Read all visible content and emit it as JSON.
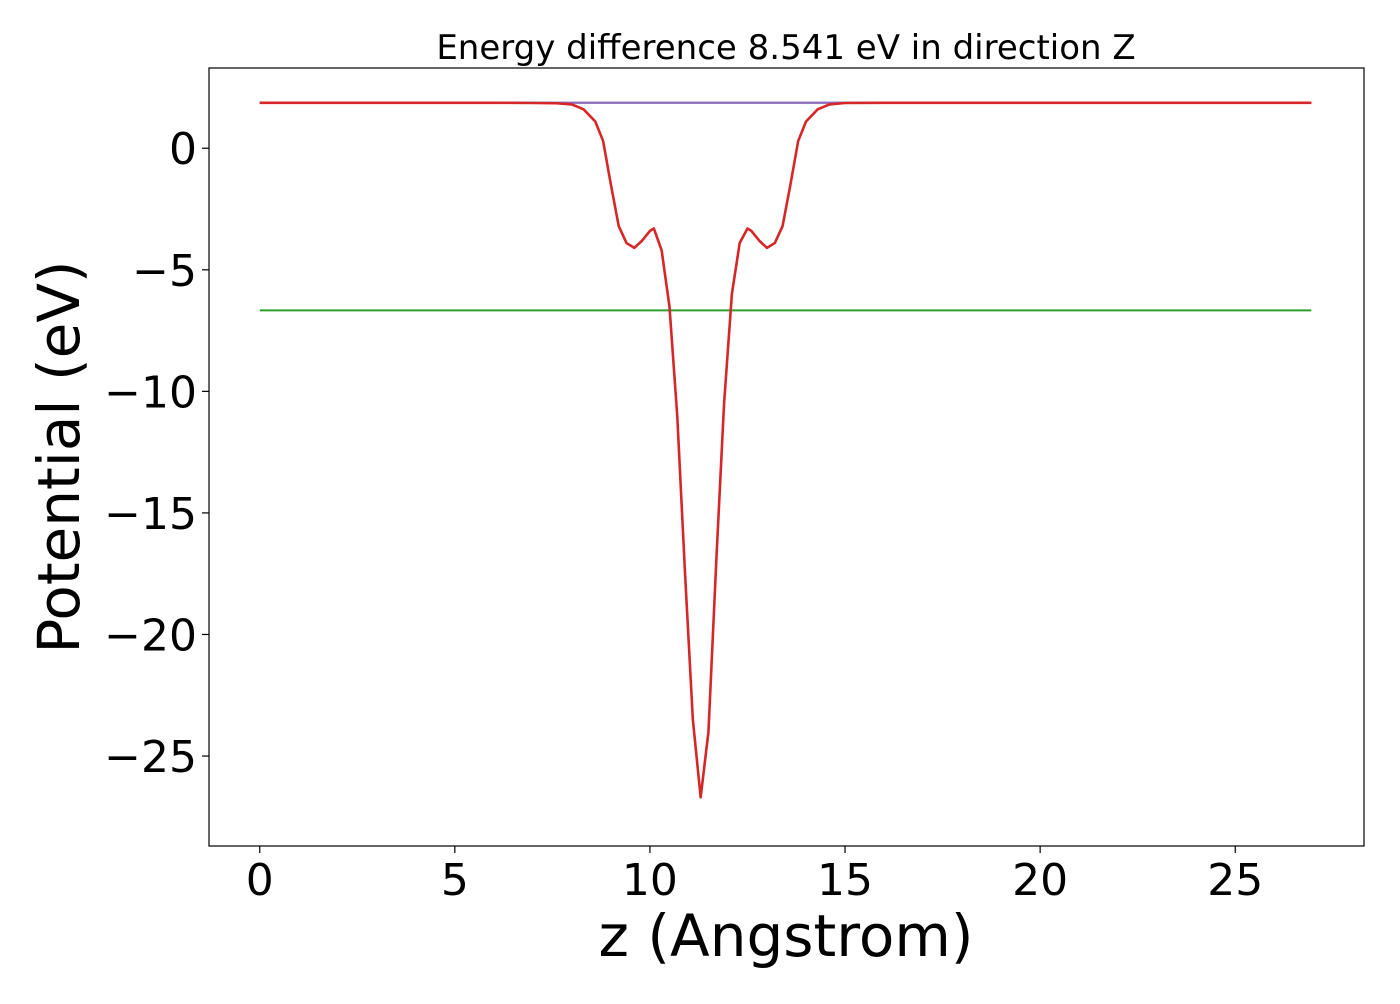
{
  "chart_data": {
    "type": "line",
    "title": "Energy difference 8.541 eV in direction Z",
    "xlabel": "z (Angstrom)",
    "ylabel": "Potential (eV)",
    "xlim": [
      -1.3,
      28.3
    ],
    "ylim": [
      -28.7,
      3.3
    ],
    "xticks": [
      0,
      5,
      10,
      15,
      20,
      25
    ],
    "xtick_labels": [
      "0",
      "5",
      "10",
      "15",
      "20",
      "25"
    ],
    "yticks": [
      0,
      -5,
      -10,
      -15,
      -20,
      -25
    ],
    "ytick_labels": [
      "0",
      "−5",
      "−10",
      "−15",
      "−20",
      "−25"
    ],
    "grid": false,
    "legend": "none",
    "series": [
      {
        "color": "#1f77b4",
        "kind": "horizontal",
        "x": [
          0,
          26.95
        ],
        "y": [
          1.87,
          1.87
        ]
      },
      {
        "color": "#2ca02c",
        "kind": "horizontal",
        "x": [
          0,
          26.95
        ],
        "y": [
          -6.67,
          -6.67
        ]
      },
      {
        "color": "#9467bd",
        "kind": "horizontal",
        "x": [
          0,
          26.95
        ],
        "y": [
          1.87,
          1.87
        ]
      },
      {
        "color": "#d62728",
        "kind": "profile",
        "x": [
          0,
          2,
          4,
          6,
          7,
          7.6,
          8.0,
          8.3,
          8.6,
          8.8,
          9.0,
          9.2,
          9.4,
          9.6,
          9.8,
          10.0,
          10.1,
          10.3,
          10.5,
          10.7,
          10.9,
          11.1,
          11.3,
          11.5,
          11.7,
          11.9,
          12.1,
          12.3,
          12.5,
          12.6,
          12.8,
          13.0,
          13.2,
          13.4,
          13.6,
          13.8,
          14.0,
          14.3,
          14.6,
          15.0,
          16,
          18,
          20,
          22,
          24,
          26.95
        ],
        "y": [
          1.87,
          1.87,
          1.87,
          1.87,
          1.86,
          1.85,
          1.8,
          1.6,
          1.1,
          0.3,
          -1.5,
          -3.2,
          -3.9,
          -4.1,
          -3.8,
          -3.4,
          -3.3,
          -4.2,
          -6.5,
          -11.0,
          -17.5,
          -23.5,
          -26.7,
          -24.0,
          -17.0,
          -10.5,
          -6.0,
          -3.9,
          -3.3,
          -3.4,
          -3.8,
          -4.1,
          -3.9,
          -3.2,
          -1.5,
          0.3,
          1.1,
          1.6,
          1.8,
          1.86,
          1.87,
          1.87,
          1.87,
          1.87,
          1.87,
          1.87
        ]
      }
    ]
  }
}
